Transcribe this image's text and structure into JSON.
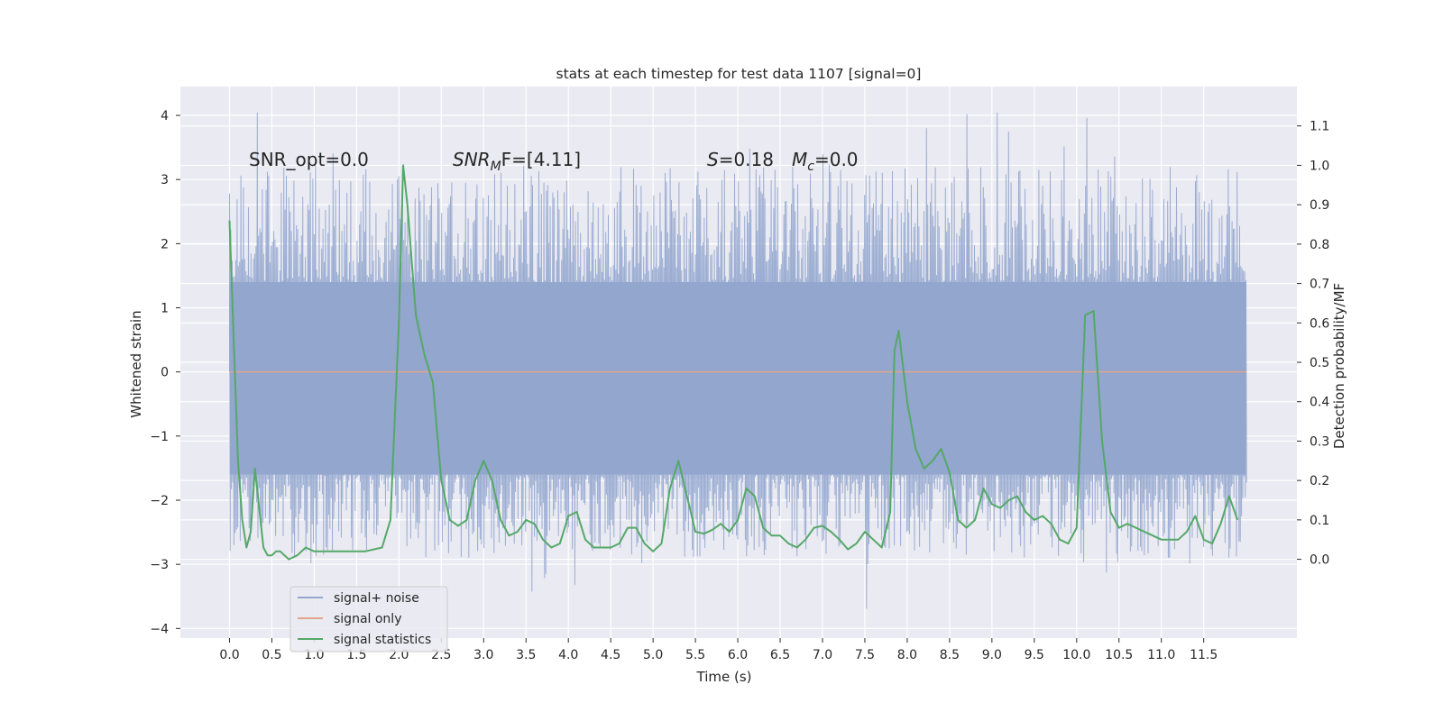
{
  "chart_data": {
    "type": "line",
    "title": "stats at each timestep for test data 1107 [signal=0]",
    "xlabel": "Time (s)",
    "ylabel": "Whitened strain",
    "ylabel_right": "Detection probability/MF",
    "xlim": [
      -0.58,
      12.6
    ],
    "ylim": [
      -4.15,
      4.45
    ],
    "ylim_right": [
      -0.2,
      1.2
    ],
    "x_ticks": [
      "0.0",
      "0.5",
      "1.0",
      "1.5",
      "2.0",
      "2.5",
      "3.0",
      "3.5",
      "4.0",
      "4.5",
      "5.0",
      "5.5",
      "6.0",
      "6.5",
      "7.0",
      "7.5",
      "8.0",
      "8.5",
      "9.0",
      "9.5",
      "10.0",
      "10.5",
      "11.0",
      "11.5"
    ],
    "y_ticks": [
      "4",
      "3",
      "2",
      "1",
      "0",
      "−1",
      "−2",
      "−3",
      "−4"
    ],
    "y_ticks_right": [
      "1.1",
      "1.0",
      "0.9",
      "0.8",
      "0.7",
      "0.6",
      "0.5",
      "0.4",
      "0.3",
      "0.2",
      "0.1",
      "0.0"
    ],
    "grid": true,
    "legend_placement": "lower-left",
    "annotations": {
      "snr_opt": "SNR_opt=0.0",
      "snr_mf_main": "SNR",
      "snr_mf_sub": "M",
      "snr_mf_rest": "F=[4.11]",
      "s_symbol": "S",
      "s_value": "=0.18",
      "mc_symbol": "M",
      "mc_sub": "c",
      "mc_value": "=0.0"
    },
    "noise_envelope": {
      "x_range": [
        0.0,
        12.0
      ],
      "dense_band": [
        -1.6,
        1.4
      ],
      "typical_peak_range": [
        -2.9,
        3.2
      ],
      "max": 4.1,
      "min": -3.7
    },
    "series": [
      {
        "name": "signal+ noise",
        "color": "#92a6ce"
      },
      {
        "name": "signal only",
        "color": "#e1a58a",
        "x": [
          0.0,
          12.0
        ],
        "y": [
          0.0,
          0.0
        ]
      },
      {
        "name": "signal statistics",
        "color": "#55a868",
        "axis": "right",
        "x": [
          0.0,
          0.05,
          0.1,
          0.15,
          0.2,
          0.25,
          0.3,
          0.35,
          0.4,
          0.45,
          0.5,
          0.55,
          0.6,
          0.7,
          0.8,
          0.9,
          1.0,
          1.1,
          1.2,
          1.4,
          1.6,
          1.8,
          1.9,
          2.0,
          2.05,
          2.1,
          2.2,
          2.3,
          2.4,
          2.5,
          2.6,
          2.7,
          2.8,
          2.9,
          3.0,
          3.1,
          3.2,
          3.3,
          3.4,
          3.5,
          3.6,
          3.7,
          3.8,
          3.9,
          4.0,
          4.1,
          4.2,
          4.3,
          4.4,
          4.5,
          4.6,
          4.7,
          4.8,
          4.9,
          5.0,
          5.1,
          5.2,
          5.3,
          5.4,
          5.5,
          5.6,
          5.7,
          5.8,
          5.9,
          6.0,
          6.1,
          6.2,
          6.3,
          6.4,
          6.5,
          6.6,
          6.7,
          6.8,
          6.9,
          7.0,
          7.1,
          7.2,
          7.3,
          7.4,
          7.5,
          7.6,
          7.7,
          7.8,
          7.85,
          7.9,
          8.0,
          8.1,
          8.2,
          8.3,
          8.4,
          8.5,
          8.6,
          8.7,
          8.8,
          8.9,
          9.0,
          9.1,
          9.2,
          9.3,
          9.4,
          9.5,
          9.6,
          9.7,
          9.8,
          9.9,
          10.0,
          10.1,
          10.2,
          10.3,
          10.4,
          10.5,
          10.6,
          10.8,
          11.0,
          11.2,
          11.3,
          11.4,
          11.5,
          11.6,
          11.7,
          11.8,
          11.9
        ],
        "y": [
          0.86,
          0.55,
          0.25,
          0.1,
          0.03,
          0.07,
          0.23,
          0.13,
          0.03,
          0.01,
          0.01,
          0.02,
          0.02,
          0.0,
          0.01,
          0.03,
          0.02,
          0.02,
          0.02,
          0.02,
          0.02,
          0.03,
          0.1,
          0.6,
          1.0,
          0.9,
          0.62,
          0.52,
          0.45,
          0.2,
          0.1,
          0.085,
          0.1,
          0.2,
          0.25,
          0.2,
          0.1,
          0.06,
          0.07,
          0.1,
          0.09,
          0.05,
          0.03,
          0.04,
          0.11,
          0.12,
          0.05,
          0.03,
          0.03,
          0.03,
          0.04,
          0.08,
          0.08,
          0.04,
          0.02,
          0.04,
          0.18,
          0.25,
          0.16,
          0.07,
          0.065,
          0.075,
          0.09,
          0.07,
          0.1,
          0.18,
          0.16,
          0.08,
          0.06,
          0.06,
          0.04,
          0.03,
          0.05,
          0.08,
          0.085,
          0.07,
          0.05,
          0.025,
          0.04,
          0.07,
          0.05,
          0.03,
          0.12,
          0.53,
          0.58,
          0.4,
          0.28,
          0.23,
          0.25,
          0.28,
          0.22,
          0.1,
          0.08,
          0.1,
          0.18,
          0.14,
          0.13,
          0.15,
          0.16,
          0.12,
          0.1,
          0.11,
          0.09,
          0.05,
          0.04,
          0.08,
          0.62,
          0.63,
          0.3,
          0.12,
          0.08,
          0.09,
          0.07,
          0.05,
          0.05,
          0.07,
          0.11,
          0.05,
          0.04,
          0.09,
          0.16,
          0.1
        ]
      }
    ]
  }
}
